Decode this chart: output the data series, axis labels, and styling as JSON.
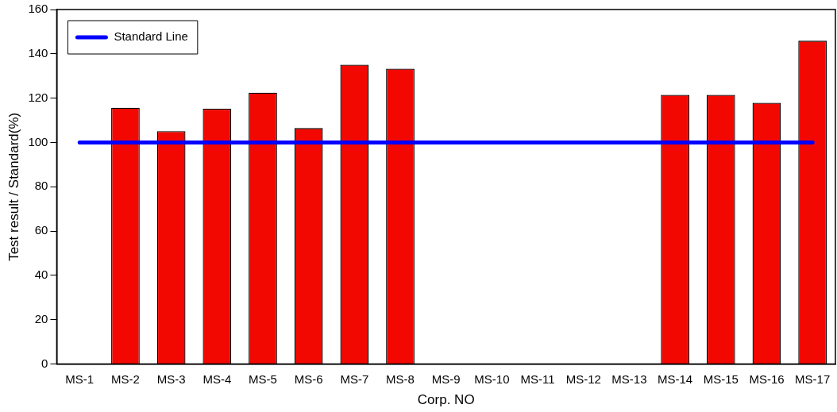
{
  "chart_data": {
    "type": "bar",
    "xlabel": "Corp. NO",
    "ylabel": "Test result / Standard(%)",
    "categories": [
      "MS-1",
      "MS-2",
      "MS-3",
      "MS-4",
      "MS-5",
      "MS-6",
      "MS-7",
      "MS-8",
      "MS-9",
      "MS-10",
      "MS-11",
      "MS-12",
      "MS-13",
      "MS-14",
      "MS-15",
      "MS-16",
      "MS-17"
    ],
    "series": [
      {
        "color": "#f20800",
        "values": [
          null,
          115.7,
          105.1,
          115.2,
          122.5,
          106.5,
          135.1,
          133.3,
          null,
          null,
          null,
          null,
          null,
          121.5,
          121.5,
          117.9,
          145.9
        ]
      },
      {
        "type": "line",
        "name": "Standard Line",
        "color": "#0000ff",
        "values": [
          100,
          100,
          100,
          100,
          100,
          100,
          100,
          100,
          100,
          100,
          100,
          100,
          100,
          100,
          100,
          100,
          100
        ]
      }
    ],
    "ylim": [
      0,
      160
    ],
    "yticks": [
      0,
      20,
      40,
      60,
      80,
      100,
      120,
      140,
      160
    ],
    "grid": false,
    "legend": "top left",
    "marker": "none",
    "line_style": "solid"
  }
}
